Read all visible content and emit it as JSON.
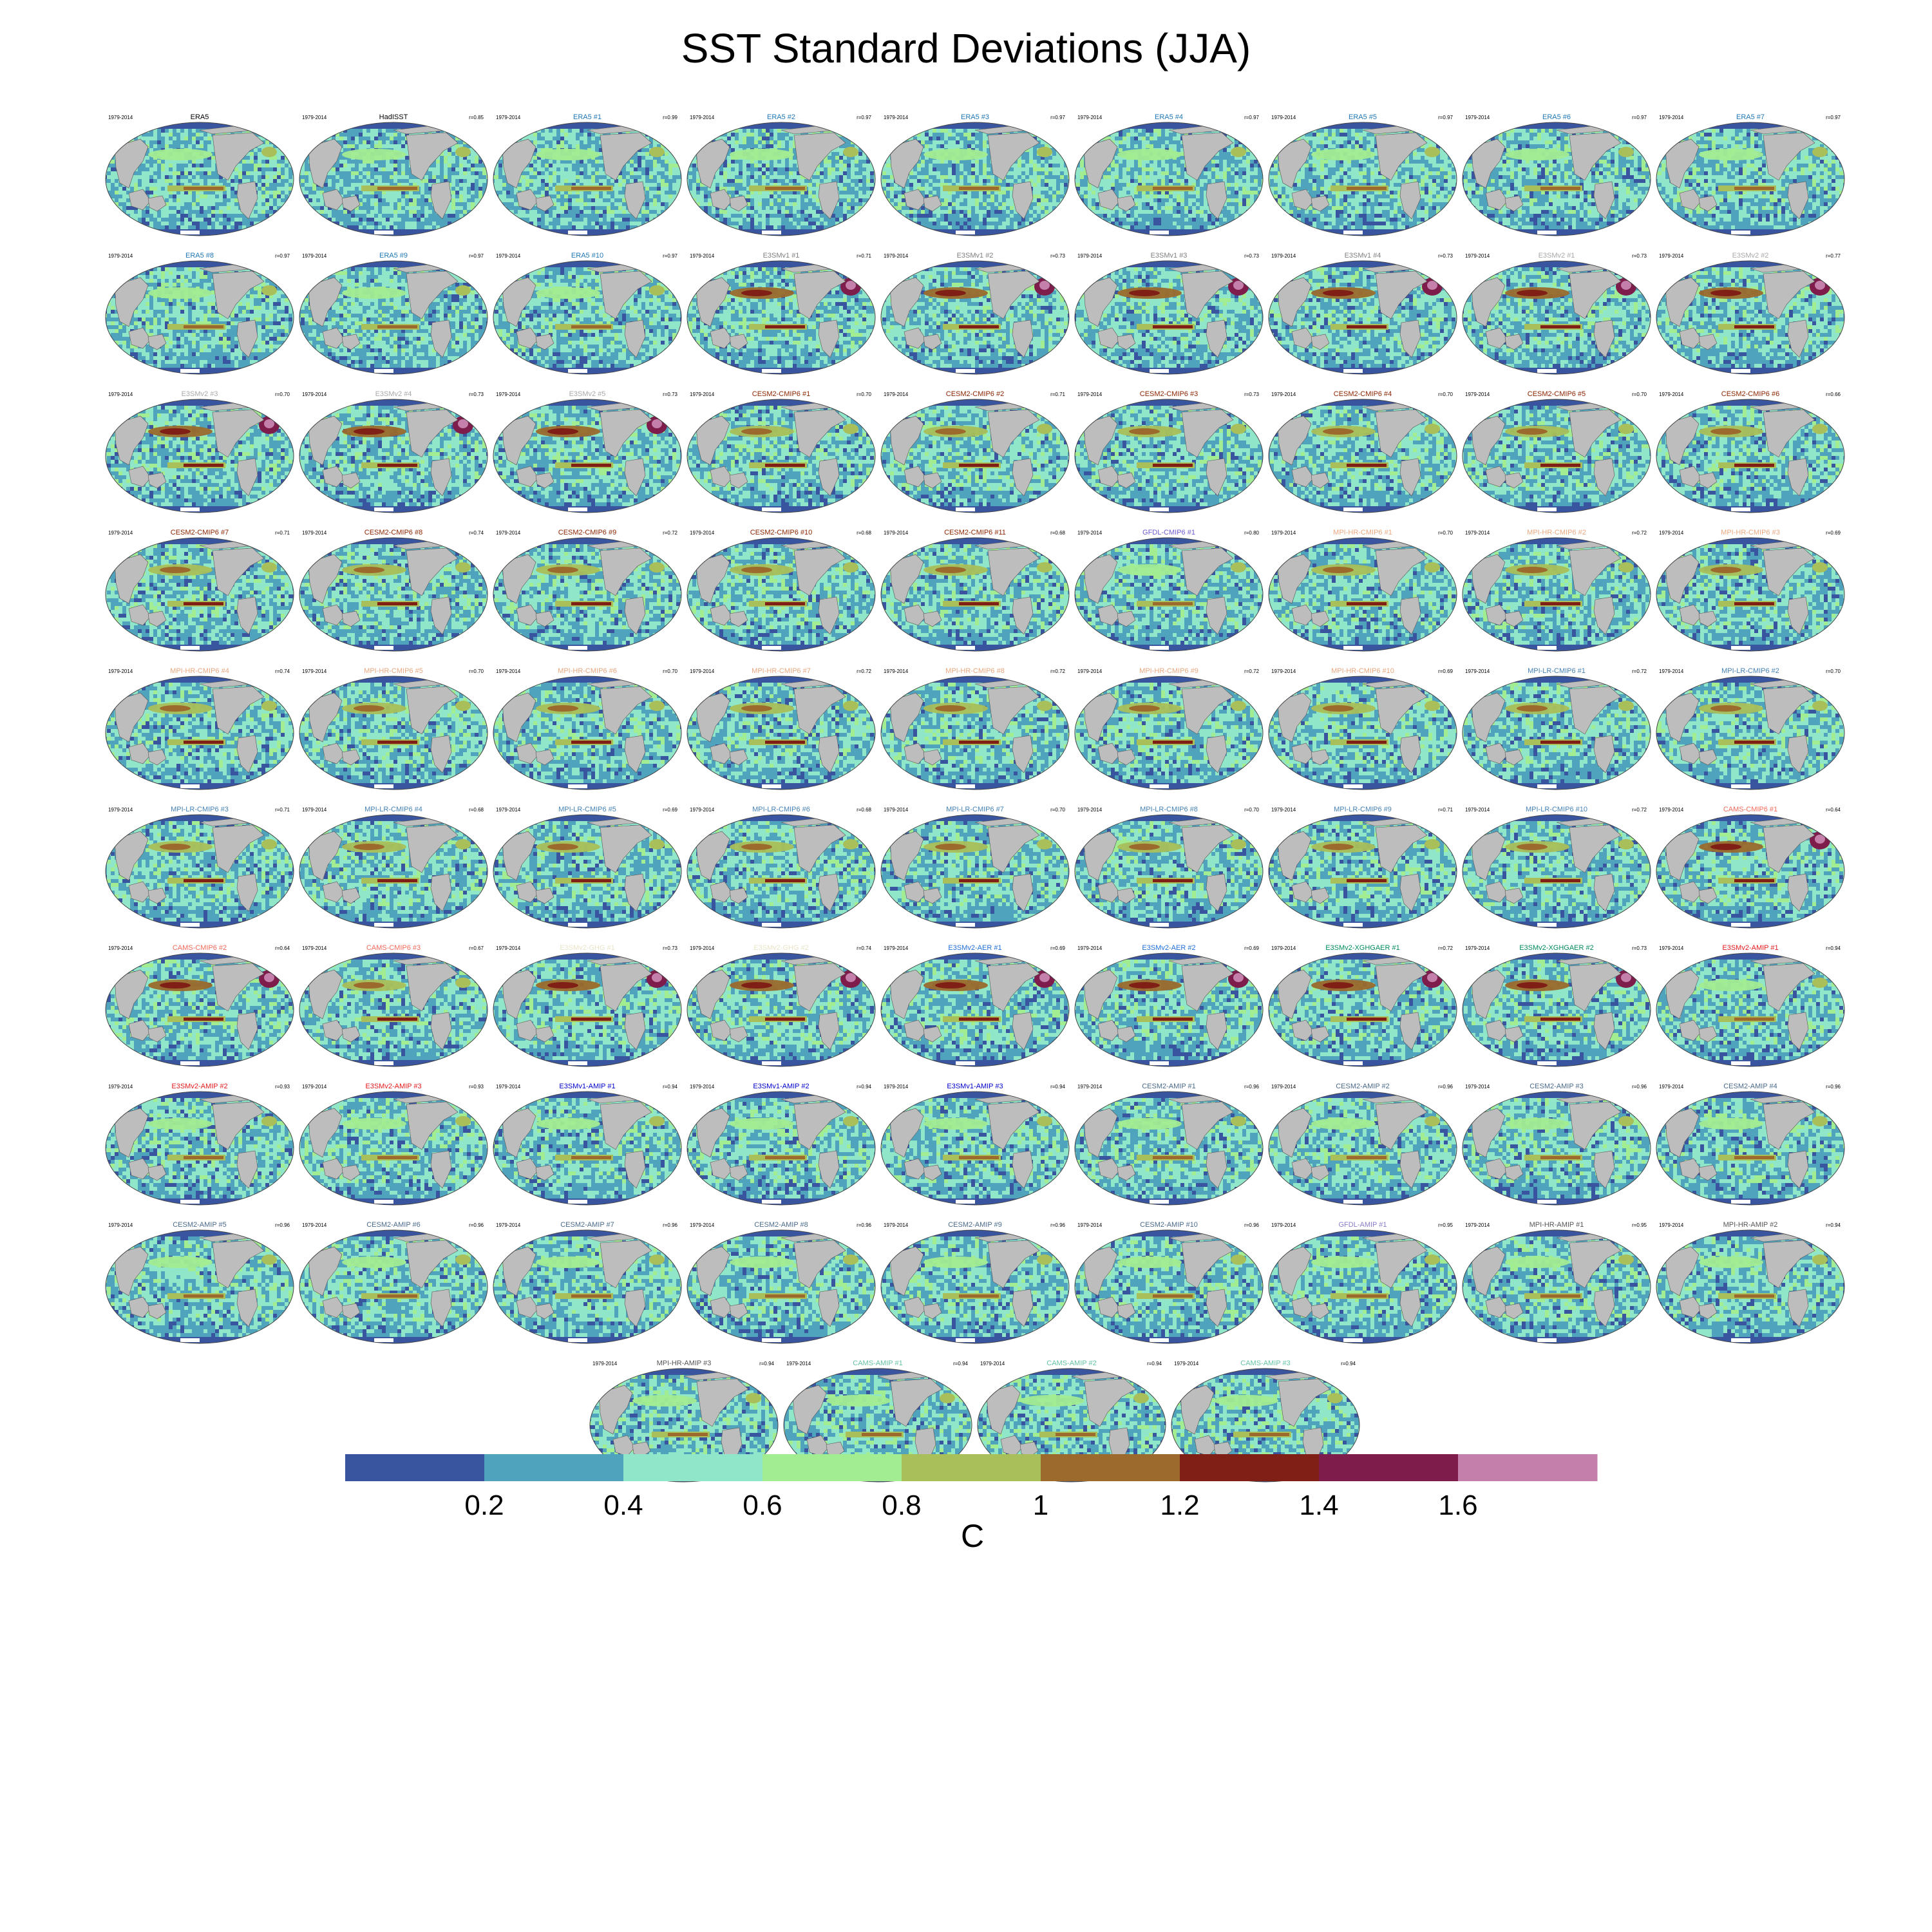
{
  "title": "SST Standard Deviations (JJA)",
  "period": "1979-2014",
  "colorbar": {
    "unit": "C",
    "bounds": [
      0,
      0.2,
      0.4,
      0.6,
      0.8,
      1.0,
      1.2,
      1.4,
      1.6,
      1.8
    ],
    "colors": [
      "#3a55a0",
      "#4fa3bd",
      "#8fe6c8",
      "#a2ec92",
      "#a9bf5a",
      "#9b6a2c",
      "#7f1f16",
      "#7e1c4b",
      "#c47faa"
    ],
    "tick_labels": [
      "0.2",
      "0.4",
      "0.6",
      "0.8",
      "1",
      "1.2",
      "1.4",
      "1.6"
    ]
  },
  "chart_data": {
    "type": "map-panel-grid",
    "title": "SST Standard Deviations (JJA)",
    "variable": "SST standard deviation",
    "season": "JJA",
    "units": "C",
    "panels": [
      {
        "label": "ERA5",
        "corr": "",
        "color": "#000000",
        "lvl": 0
      },
      {
        "label": "HadISST",
        "corr": "r=0.85",
        "color": "#000000",
        "lvl": 0
      },
      {
        "label": "ERA5   #1",
        "corr": "r=0.99",
        "color": "#1f77b4",
        "lvl": 0
      },
      {
        "label": "ERA5   #2",
        "corr": "r=0.97",
        "color": "#1f77b4",
        "lvl": 0
      },
      {
        "label": "ERA5   #3",
        "corr": "r=0.97",
        "color": "#1f77b4",
        "lvl": 0
      },
      {
        "label": "ERA5   #4",
        "corr": "r=0.97",
        "color": "#1f77b4",
        "lvl": 0
      },
      {
        "label": "ERA5   #5",
        "corr": "r=0.97",
        "color": "#1f77b4",
        "lvl": 0
      },
      {
        "label": "ERA5   #6",
        "corr": "r=0.97",
        "color": "#1f77b4",
        "lvl": 0
      },
      {
        "label": "ERA5   #7",
        "corr": "r=0.97",
        "color": "#1f77b4",
        "lvl": 0
      },
      {
        "label": "ERA5   #8",
        "corr": "r=0.97",
        "color": "#1f77b4",
        "lvl": 0
      },
      {
        "label": "ERA5   #9",
        "corr": "r=0.97",
        "color": "#1f77b4",
        "lvl": 0
      },
      {
        "label": "ERA5   #10",
        "corr": "r=0.97",
        "color": "#1f77b4",
        "lvl": 0
      },
      {
        "label": "E3SMv1 #1",
        "corr": "r=0.71",
        "color": "#7f7f7f",
        "lvl": 2
      },
      {
        "label": "E3SMv1 #2",
        "corr": "r=0.73",
        "color": "#7f7f7f",
        "lvl": 2
      },
      {
        "label": "E3SMv1 #3",
        "corr": "r=0.73",
        "color": "#7f7f7f",
        "lvl": 2
      },
      {
        "label": "E3SMv1 #4",
        "corr": "r=0.73",
        "color": "#7f7f7f",
        "lvl": 2
      },
      {
        "label": "E3SMv2 #1",
        "corr": "r=0.73",
        "color": "#a9a9a9",
        "lvl": 2
      },
      {
        "label": "E3SMv2 #2",
        "corr": "r=0.77",
        "color": "#a9a9a9",
        "lvl": 2
      },
      {
        "label": "E3SMv2 #3",
        "corr": "r=0.70",
        "color": "#a9a9a9",
        "lvl": 2
      },
      {
        "label": "E3SMv2 #4",
        "corr": "r=0.73",
        "color": "#a9a9a9",
        "lvl": 2
      },
      {
        "label": "E3SMv2 #5",
        "corr": "r=0.73",
        "color": "#a9a9a9",
        "lvl": 2
      },
      {
        "label": "CESM2-CMIP6 #1",
        "corr": "r=0.70",
        "color": "#8b2500",
        "lvl": 1
      },
      {
        "label": "CESM2-CMIP6 #2",
        "corr": "r=0.71",
        "color": "#8b2500",
        "lvl": 1
      },
      {
        "label": "CESM2-CMIP6 #3",
        "corr": "r=0.73",
        "color": "#8b2500",
        "lvl": 1
      },
      {
        "label": "CESM2-CMIP6 #4",
        "corr": "r=0.70",
        "color": "#8b2500",
        "lvl": 1
      },
      {
        "label": "CESM2-CMIP6 #5",
        "corr": "r=0.70",
        "color": "#8b2500",
        "lvl": 1
      },
      {
        "label": "CESM2-CMIP6 #6",
        "corr": "r=0.66",
        "color": "#8b2500",
        "lvl": 1
      },
      {
        "label": "CESM2-CMIP6 #7",
        "corr": "r=0.71",
        "color": "#8b2500",
        "lvl": 1
      },
      {
        "label": "CESM2-CMIP6 #8",
        "corr": "r=0.74",
        "color": "#8b2500",
        "lvl": 1
      },
      {
        "label": "CESM2-CMIP6 #9",
        "corr": "r=0.72",
        "color": "#8b2500",
        "lvl": 1
      },
      {
        "label": "CESM2-CMIP6 #10",
        "corr": "r=0.68",
        "color": "#8b2500",
        "lvl": 1
      },
      {
        "label": "CESM2-CMIP6 #11",
        "corr": "r=0.68",
        "color": "#8b2500",
        "lvl": 1
      },
      {
        "label": "GFDL-CMIP6 #1",
        "corr": "r=0.80",
        "color": "#6a5acd",
        "lvl": 0
      },
      {
        "label": "MPI-HR-CMIP6 #1",
        "corr": "r=0.70",
        "color": "#e8a880",
        "lvl": 1
      },
      {
        "label": "MPI-HR-CMIP6 #2",
        "corr": "r=0.72",
        "color": "#e8a880",
        "lvl": 1
      },
      {
        "label": "MPI-HR-CMIP6 #3",
        "corr": "r=0.69",
        "color": "#e8a880",
        "lvl": 1
      },
      {
        "label": "MPI-HR-CMIP6 #4",
        "corr": "r=0.74",
        "color": "#e8a880",
        "lvl": 1
      },
      {
        "label": "MPI-HR-CMIP6 #5",
        "corr": "r=0.70",
        "color": "#e8a880",
        "lvl": 1
      },
      {
        "label": "MPI-HR-CMIP6 #6",
        "corr": "r=0.70",
        "color": "#e8a880",
        "lvl": 1
      },
      {
        "label": "MPI-HR-CMIP6 #7",
        "corr": "r=0.72",
        "color": "#e8a880",
        "lvl": 1
      },
      {
        "label": "MPI-HR-CMIP6 #8",
        "corr": "r=0.72",
        "color": "#e8a880",
        "lvl": 1
      },
      {
        "label": "MPI-HR-CMIP6 #9",
        "corr": "r=0.72",
        "color": "#e8a880",
        "lvl": 1
      },
      {
        "label": "MPI-HR-CMIP6 #10",
        "corr": "r=0.69",
        "color": "#e8a880",
        "lvl": 1
      },
      {
        "label": "MPI-LR-CMIP6 #1",
        "corr": "r=0.72",
        "color": "#4682b4",
        "lvl": 1
      },
      {
        "label": "MPI-LR-CMIP6 #2",
        "corr": "r=0.70",
        "color": "#4682b4",
        "lvl": 1
      },
      {
        "label": "MPI-LR-CMIP6 #3",
        "corr": "r=0.71",
        "color": "#4682b4",
        "lvl": 1
      },
      {
        "label": "MPI-LR-CMIP6 #4",
        "corr": "r=0.68",
        "color": "#4682b4",
        "lvl": 1
      },
      {
        "label": "MPI-LR-CMIP6 #5",
        "corr": "r=0.69",
        "color": "#4682b4",
        "lvl": 1
      },
      {
        "label": "MPI-LR-CMIP6 #6",
        "corr": "r=0.68",
        "color": "#4682b4",
        "lvl": 1
      },
      {
        "label": "MPI-LR-CMIP6 #7",
        "corr": "r=0.70",
        "color": "#4682b4",
        "lvl": 1
      },
      {
        "label": "MPI-LR-CMIP6 #8",
        "corr": "r=0.70",
        "color": "#4682b4",
        "lvl": 1
      },
      {
        "label": "MPI-LR-CMIP6 #9",
        "corr": "r=0.71",
        "color": "#4682b4",
        "lvl": 1
      },
      {
        "label": "MPI-LR-CMIP6 #10",
        "corr": "r=0.72",
        "color": "#4682b4",
        "lvl": 1
      },
      {
        "label": "CAMS-CMIP6 #1",
        "corr": "r=0.64",
        "color": "#f26a5a",
        "lvl": 2
      },
      {
        "label": "CAMS-CMIP6 #2",
        "corr": "r=0.64",
        "color": "#f26a5a",
        "lvl": 2
      },
      {
        "label": "CAMS-CMIP6 #3",
        "corr": "r=0.67",
        "color": "#f26a5a",
        "lvl": 1
      },
      {
        "label": "E3SMv2-GHG #1",
        "corr": "r=0.73",
        "color": "#e8e4c8",
        "lvl": 2
      },
      {
        "label": "E3SMv2-GHG #2",
        "corr": "r=0.74",
        "color": "#e8e4c8",
        "lvl": 2
      },
      {
        "label": "E3SMv2-AER #1",
        "corr": "r=0.69",
        "color": "#1f6fd8",
        "lvl": 2
      },
      {
        "label": "E3SMv2-AER #2",
        "corr": "r=0.69",
        "color": "#1f6fd8",
        "lvl": 2
      },
      {
        "label": "E3SMv2-XGHGAER #1",
        "corr": "r=0.72",
        "color": "#008b5a",
        "lvl": 2
      },
      {
        "label": "E3SMv2-XGHGAER #2",
        "corr": "r=0.73",
        "color": "#008b5a",
        "lvl": 2
      },
      {
        "label": "E3SMv2-AMIP #1",
        "corr": "r=0.94",
        "color": "#e41a1c",
        "lvl": 0
      },
      {
        "label": "E3SMv2-AMIP #2",
        "corr": "r=0.93",
        "color": "#e41a1c",
        "lvl": 0
      },
      {
        "label": "E3SMv2-AMIP #3",
        "corr": "r=0.93",
        "color": "#e41a1c",
        "lvl": 0
      },
      {
        "label": "E3SMv1-AMIP #1",
        "corr": "r=0.94",
        "color": "#0000cd",
        "lvl": 0
      },
      {
        "label": "E3SMv1-AMIP #2",
        "corr": "r=0.94",
        "color": "#0000cd",
        "lvl": 0
      },
      {
        "label": "E3SMv1-AMIP #3",
        "corr": "r=0.94",
        "color": "#0000cd",
        "lvl": 0
      },
      {
        "label": "CESM2-AMIP #1",
        "corr": "r=0.96",
        "color": "#4a6a8a",
        "lvl": 0
      },
      {
        "label": "CESM2-AMIP #2",
        "corr": "r=0.96",
        "color": "#4a6a8a",
        "lvl": 0
      },
      {
        "label": "CESM2-AMIP #3",
        "corr": "r=0.96",
        "color": "#4a6a8a",
        "lvl": 0
      },
      {
        "label": "CESM2-AMIP #4",
        "corr": "r=0.96",
        "color": "#4a6a8a",
        "lvl": 0
      },
      {
        "label": "CESM2-AMIP #5",
        "corr": "r=0.96",
        "color": "#4a6a8a",
        "lvl": 0
      },
      {
        "label": "CESM2-AMIP #6",
        "corr": "r=0.96",
        "color": "#4a6a8a",
        "lvl": 0
      },
      {
        "label": "CESM2-AMIP #7",
        "corr": "r=0.96",
        "color": "#4a6a8a",
        "lvl": 0
      },
      {
        "label": "CESM2-AMIP #8",
        "corr": "r=0.96",
        "color": "#4a6a8a",
        "lvl": 0
      },
      {
        "label": "CESM2-AMIP #9",
        "corr": "r=0.96",
        "color": "#4a6a8a",
        "lvl": 0
      },
      {
        "label": "CESM2-AMIP #10",
        "corr": "r=0.96",
        "color": "#4a6a8a",
        "lvl": 0
      },
      {
        "label": "GFDL-AMIP #1",
        "corr": "r=0.95",
        "color": "#8a7cc8",
        "lvl": 0
      },
      {
        "label": "MPI-HR-AMIP #1",
        "corr": "r=0.95",
        "color": "#555555",
        "lvl": 0
      },
      {
        "label": "MPI-HR-AMIP #2",
        "corr": "r=0.94",
        "color": "#555555",
        "lvl": 0
      },
      {
        "label": "MPI-HR-AMIP #3",
        "corr": "r=0.94",
        "color": "#555555",
        "lvl": 0
      },
      {
        "label": "CAMS-AMIP #1",
        "corr": "r=0.94",
        "color": "#66c2a5",
        "lvl": 0
      },
      {
        "label": "CAMS-AMIP #2",
        "corr": "r=0.94",
        "color": "#66c2a5",
        "lvl": 0
      },
      {
        "label": "CAMS-AMIP #3",
        "corr": "r=0.94",
        "color": "#66c2a5",
        "lvl": 0
      }
    ]
  }
}
